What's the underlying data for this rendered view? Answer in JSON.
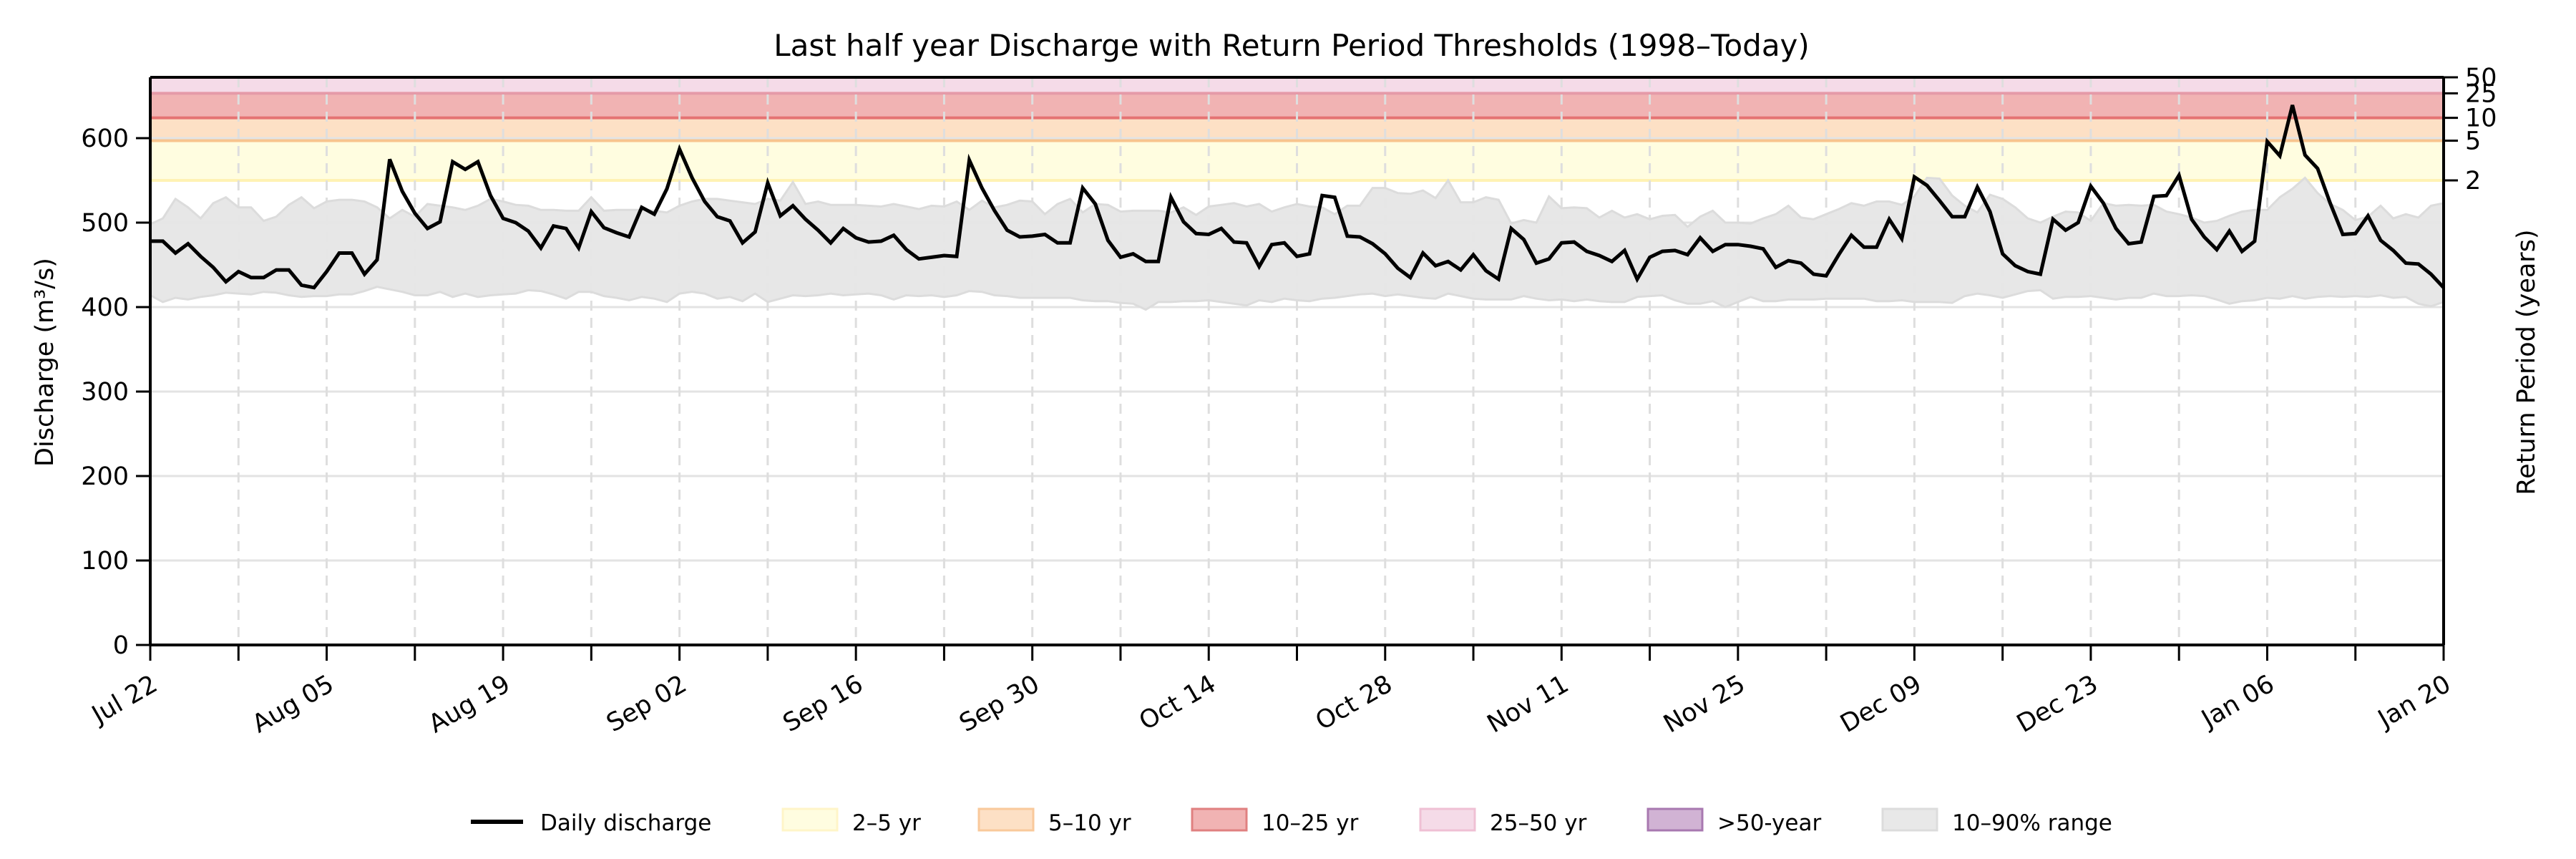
{
  "chart_data": {
    "type": "line",
    "title": "Last half year Discharge with Return Period Thresholds (1998–Today)",
    "xlabel": "",
    "ylabel": "Discharge (m³/s)",
    "ylabel_right": "Return Period (years)",
    "ylim": [
      0,
      672
    ],
    "yticks": [
      0,
      100,
      200,
      300,
      400,
      500,
      600
    ],
    "grid": true,
    "start_date": "Jul 22",
    "end_date": "Jan 20",
    "n_days": 183,
    "xtick_labels": [
      "Jul 22",
      "Aug 05",
      "Aug 19",
      "Sep 02",
      "Sep 16",
      "Sep 30",
      "Oct 14",
      "Oct 28",
      "Nov 11",
      "Nov 25",
      "Dec 09",
      "Dec 23",
      "Jan 06",
      "Jan 20"
    ],
    "xtick_label_day_index": [
      0,
      14,
      28,
      42,
      56,
      70,
      84,
      98,
      112,
      126,
      140,
      154,
      168,
      182
    ],
    "minor_tick_interval_days": 7,
    "return_period_thresholds": [
      {
        "years": "2",
        "value": 550
      },
      {
        "years": "5",
        "value": 597
      },
      {
        "years": "10",
        "value": 624
      },
      {
        "years": "25",
        "value": 653
      },
      {
        "years": "50",
        "value": 672
      }
    ],
    "bands": [
      {
        "name": "2–5 yr",
        "from": 550,
        "to": 597,
        "fill": "#fffde0",
        "edge": "#fff2b3"
      },
      {
        "name": "5–10 yr",
        "from": 597,
        "to": 624,
        "fill": "#fde0c5",
        "edge": "#f8c48e"
      },
      {
        "name": "10–25 yr",
        "from": 624,
        "to": 653,
        "fill": "#f1b3b3",
        "edge": "#e57373"
      },
      {
        "name": "25–50 yr",
        "from": 653,
        "to": 672,
        "fill": "#f5dbe8",
        "edge": "#e59aa8"
      }
    ],
    "series": [
      {
        "name": "Daily discharge",
        "color": "#000000",
        "values": [
          478,
          478,
          464,
          475,
          460,
          447,
          430,
          442,
          435,
          435,
          444,
          444,
          426,
          423,
          442,
          464,
          464,
          439,
          456,
          575,
          537,
          511,
          493,
          501,
          572,
          563,
          572,
          532,
          505,
          500,
          490,
          470,
          496,
          493,
          470,
          513,
          494,
          488,
          483,
          518,
          510,
          540,
          587,
          553,
          525,
          507,
          502,
          476,
          489,
          547,
          508,
          520,
          504,
          491,
          476,
          493,
          482,
          477,
          478,
          485,
          468,
          457,
          459,
          461,
          460,
          574,
          541,
          514,
          491,
          483,
          484,
          486,
          476,
          476,
          541,
          522,
          479,
          459,
          463,
          454,
          454,
          530,
          501,
          487,
          486,
          493,
          477,
          476,
          448,
          474,
          476,
          460,
          463,
          532,
          530,
          484,
          483,
          475,
          463,
          446,
          435,
          464,
          449,
          454,
          444,
          462,
          443,
          433,
          493,
          480,
          452,
          457,
          476,
          477,
          466,
          461,
          454,
          467,
          433,
          459,
          466,
          467,
          462,
          482,
          466,
          474,
          474,
          472,
          469,
          447,
          455,
          452,
          439,
          437,
          462,
          485,
          471,
          471,
          504,
          481,
          554,
          544,
          526,
          507,
          507,
          542,
          513,
          463,
          449,
          442,
          439,
          504,
          491,
          500,
          543,
          523,
          493,
          475,
          477,
          531,
          532,
          556,
          504,
          483,
          468,
          490,
          466,
          478,
          596,
          579,
          639,
          580,
          564,
          523,
          486,
          487,
          508,
          479,
          467,
          452,
          451,
          439,
          423
        ]
      },
      {
        "name": "10–90% range upper",
        "values": [
          498,
          505,
          528,
          518,
          505,
          523,
          530,
          518,
          518,
          502,
          507,
          521,
          530,
          517,
          525,
          527,
          527,
          525,
          518,
          505,
          515,
          507,
          522,
          520,
          518,
          515,
          520,
          528,
          525,
          521,
          520,
          515,
          515,
          514,
          514,
          530,
          514,
          515,
          515,
          515,
          514,
          512,
          520,
          525,
          528,
          528,
          526,
          524,
          522,
          528,
          526,
          548,
          522,
          525,
          521,
          521,
          521,
          520,
          519,
          522,
          519,
          516,
          520,
          519,
          525,
          515,
          526,
          518,
          521,
          526,
          525,
          510,
          522,
          528,
          512,
          522,
          521,
          513,
          514,
          514,
          514,
          512,
          518,
          509,
          519,
          521,
          523,
          519,
          522,
          513,
          518,
          522,
          519,
          518,
          510,
          520,
          520,
          541,
          541,
          535,
          534,
          538,
          529,
          550,
          524,
          524,
          530,
          527,
          499,
          503,
          500,
          531,
          517,
          518,
          517,
          506,
          514,
          506,
          510,
          504,
          508,
          509,
          495,
          507,
          514,
          500,
          500,
          499,
          505,
          510,
          520,
          506,
          504,
          510,
          516,
          523,
          520,
          525,
          525,
          521,
          531,
          553,
          552,
          532,
          520,
          512,
          533,
          528,
          518,
          505,
          500,
          507,
          513,
          512,
          502,
          523,
          520,
          521,
          520,
          521,
          513,
          510,
          506,
          500,
          502,
          508,
          513,
          515,
          515,
          530,
          540,
          553,
          535,
          522,
          515,
          503,
          507,
          520,
          505,
          510,
          506,
          520,
          523
        ]
      },
      {
        "name": "10–90% range lower",
        "values": [
          414,
          406,
          411,
          409,
          412,
          414,
          417,
          416,
          415,
          418,
          417,
          414,
          412,
          413,
          413,
          415,
          415,
          419,
          424,
          421,
          418,
          414,
          414,
          418,
          412,
          416,
          412,
          414,
          415,
          416,
          420,
          419,
          415,
          410,
          418,
          418,
          413,
          411,
          408,
          412,
          410,
          406,
          416,
          418,
          416,
          410,
          412,
          407,
          416,
          406,
          410,
          414,
          413,
          414,
          416,
          414,
          415,
          416,
          414,
          409,
          414,
          413,
          414,
          412,
          414,
          419,
          418,
          414,
          413,
          411,
          411,
          411,
          411,
          411,
          408,
          407,
          407,
          405,
          404,
          397,
          406,
          406,
          407,
          407,
          408,
          406,
          404,
          402,
          408,
          406,
          410,
          408,
          407,
          410,
          411,
          413,
          415,
          416,
          413,
          415,
          413,
          411,
          410,
          416,
          413,
          410,
          409,
          409,
          409,
          413,
          410,
          408,
          409,
          407,
          409,
          407,
          406,
          406,
          412,
          413,
          414,
          408,
          404,
          404,
          407,
          400,
          406,
          412,
          407,
          407,
          409,
          409,
          409,
          410,
          410,
          410,
          410,
          407,
          407,
          408,
          406,
          406,
          406,
          405,
          413,
          416,
          414,
          411,
          415,
          419,
          420,
          410,
          412,
          412,
          413,
          411,
          409,
          411,
          411,
          416,
          413,
          413,
          414,
          413,
          409,
          404,
          407,
          408,
          411,
          410,
          413,
          410,
          412,
          413,
          412,
          413,
          412,
          414,
          411,
          412,
          404,
          401,
          406
        ]
      }
    ],
    "band_color": "#e6e6e6",
    "legend": {
      "position": "bottom-center",
      "entries": [
        {
          "label": "Daily discharge",
          "kind": "line",
          "color": "#000000"
        },
        {
          "label": "2–5 yr",
          "kind": "patch",
          "fill": "#fffde0",
          "edge": "#fff5c8"
        },
        {
          "label": "5–10 yr",
          "kind": "patch",
          "fill": "#fde0c5",
          "edge": "#f9c99b"
        },
        {
          "label": "10–25 yr",
          "kind": "patch",
          "fill": "#f1b3b3",
          "edge": "#e08080"
        },
        {
          "label": "25–50 yr",
          "kind": "patch",
          "fill": "#f5dbe8",
          "edge": "#efc0d4"
        },
        {
          "label": ">50-year",
          "kind": "patch",
          "fill": "#d1b3d4",
          "edge": "#a878b0"
        },
        {
          "label": "10–90% range",
          "kind": "patch",
          "fill": "#e8e8e8",
          "edge": "#dcdcdc"
        }
      ]
    }
  }
}
